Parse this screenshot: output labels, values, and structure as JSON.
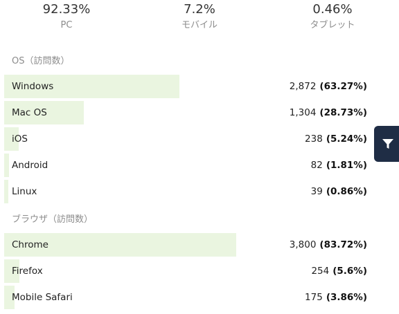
{
  "summary": [
    {
      "value": "92.33%",
      "label": "PC"
    },
    {
      "value": "7.2%",
      "label": "モバイル"
    },
    {
      "value": "0.46%",
      "label": "タブレット"
    }
  ],
  "os_section": {
    "title": "OS（訪問数）",
    "rows": [
      {
        "label": "Windows",
        "count": "2,872",
        "percent": "(63.27%)",
        "share": 63.27
      },
      {
        "label": "Mac OS",
        "count": "1,304",
        "percent": "(28.73%)",
        "share": 28.73
      },
      {
        "label": "iOS",
        "count": "238",
        "percent": "(5.24%)",
        "share": 5.24
      },
      {
        "label": "Android",
        "count": "82",
        "percent": "(1.81%)",
        "share": 1.81
      },
      {
        "label": "Linux",
        "count": "39",
        "percent": "(0.86%)",
        "share": 0.86
      }
    ]
  },
  "browser_section": {
    "title": "ブラウザ（訪問数）",
    "rows": [
      {
        "label": "Chrome",
        "count": "3,800",
        "percent": "(83.72%)",
        "share": 83.72
      },
      {
        "label": "Firefox",
        "count": "254",
        "percent": "(5.6%)",
        "share": 5.6
      },
      {
        "label": "Mobile Safari",
        "count": "175",
        "percent": "(3.86%)",
        "share": 3.86
      }
    ]
  },
  "colors": {
    "bar": "#eaf5e0",
    "filter_bg": "#1f2d45",
    "muted_text": "#8c8c8c"
  },
  "filter": {
    "icon": "filter-icon"
  }
}
